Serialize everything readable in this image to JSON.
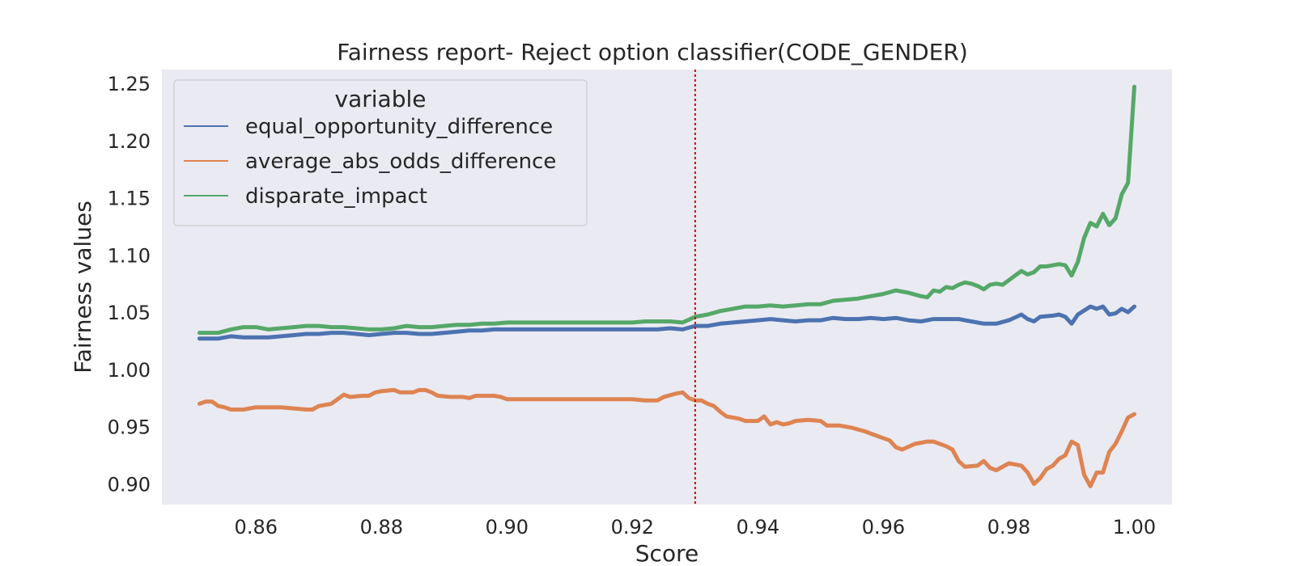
{
  "chart_data": {
    "type": "line",
    "title": "Fairness report- Reject option classifier(CODE_GENDER)",
    "xlabel": "Score",
    "ylabel": "Fairness values",
    "xlim": [
      0.845,
      1.006
    ],
    "ylim": [
      0.882,
      1.262
    ],
    "xticks": [
      0.86,
      0.88,
      0.9,
      0.92,
      0.94,
      0.96,
      0.98,
      1.0
    ],
    "xtick_labels": [
      "0.86",
      "0.88",
      "0.90",
      "0.92",
      "0.94",
      "0.96",
      "0.98",
      "1.00"
    ],
    "yticks": [
      0.9,
      0.95,
      1.0,
      1.05,
      1.1,
      1.15,
      1.2,
      1.25
    ],
    "ytick_labels": [
      "0.90",
      "0.95",
      "1.00",
      "1.05",
      "1.10",
      "1.15",
      "1.20",
      "1.25"
    ],
    "grid": false,
    "background": "#eaeaf2",
    "legend": {
      "title": "variable",
      "placement": "upper-left"
    },
    "vline": {
      "x": 0.93,
      "color": "#dd0000",
      "style": "dotted"
    },
    "series": [
      {
        "name": "equal_opportunity_difference",
        "color": "#4c72b0",
        "points": [
          [
            0.851,
            1.027
          ],
          [
            0.854,
            1.027
          ],
          [
            0.856,
            1.029
          ],
          [
            0.858,
            1.028
          ],
          [
            0.86,
            1.028
          ],
          [
            0.862,
            1.028
          ],
          [
            0.864,
            1.029
          ],
          [
            0.866,
            1.03
          ],
          [
            0.868,
            1.031
          ],
          [
            0.87,
            1.031
          ],
          [
            0.872,
            1.032
          ],
          [
            0.874,
            1.032
          ],
          [
            0.876,
            1.031
          ],
          [
            0.878,
            1.03
          ],
          [
            0.88,
            1.031
          ],
          [
            0.882,
            1.032
          ],
          [
            0.884,
            1.032
          ],
          [
            0.886,
            1.031
          ],
          [
            0.888,
            1.031
          ],
          [
            0.89,
            1.032
          ],
          [
            0.892,
            1.033
          ],
          [
            0.894,
            1.034
          ],
          [
            0.896,
            1.034
          ],
          [
            0.898,
            1.035
          ],
          [
            0.9,
            1.035
          ],
          [
            0.905,
            1.035
          ],
          [
            0.91,
            1.035
          ],
          [
            0.915,
            1.035
          ],
          [
            0.92,
            1.035
          ],
          [
            0.922,
            1.035
          ],
          [
            0.924,
            1.035
          ],
          [
            0.926,
            1.036
          ],
          [
            0.928,
            1.035
          ],
          [
            0.93,
            1.038
          ],
          [
            0.932,
            1.038
          ],
          [
            0.934,
            1.04
          ],
          [
            0.936,
            1.041
          ],
          [
            0.938,
            1.042
          ],
          [
            0.94,
            1.043
          ],
          [
            0.942,
            1.044
          ],
          [
            0.944,
            1.043
          ],
          [
            0.946,
            1.042
          ],
          [
            0.948,
            1.043
          ],
          [
            0.95,
            1.043
          ],
          [
            0.952,
            1.045
          ],
          [
            0.954,
            1.044
          ],
          [
            0.956,
            1.044
          ],
          [
            0.958,
            1.045
          ],
          [
            0.96,
            1.044
          ],
          [
            0.962,
            1.045
          ],
          [
            0.964,
            1.043
          ],
          [
            0.966,
            1.042
          ],
          [
            0.968,
            1.044
          ],
          [
            0.97,
            1.044
          ],
          [
            0.972,
            1.044
          ],
          [
            0.974,
            1.042
          ],
          [
            0.976,
            1.04
          ],
          [
            0.978,
            1.04
          ],
          [
            0.98,
            1.043
          ],
          [
            0.982,
            1.048
          ],
          [
            0.983,
            1.044
          ],
          [
            0.984,
            1.042
          ],
          [
            0.985,
            1.046
          ],
          [
            0.987,
            1.047
          ],
          [
            0.988,
            1.048
          ],
          [
            0.989,
            1.046
          ],
          [
            0.99,
            1.04
          ],
          [
            0.991,
            1.048
          ],
          [
            0.993,
            1.055
          ],
          [
            0.994,
            1.053
          ],
          [
            0.995,
            1.055
          ],
          [
            0.996,
            1.048
          ],
          [
            0.997,
            1.049
          ],
          [
            0.998,
            1.053
          ],
          [
            0.999,
            1.05
          ],
          [
            1.0,
            1.055
          ]
        ]
      },
      {
        "name": "average_abs_odds_difference",
        "color": "#dd8452",
        "points": [
          [
            0.851,
            0.97
          ],
          [
            0.852,
            0.972
          ],
          [
            0.853,
            0.972
          ],
          [
            0.854,
            0.968
          ],
          [
            0.855,
            0.967
          ],
          [
            0.856,
            0.965
          ],
          [
            0.858,
            0.965
          ],
          [
            0.86,
            0.967
          ],
          [
            0.862,
            0.967
          ],
          [
            0.864,
            0.967
          ],
          [
            0.866,
            0.966
          ],
          [
            0.868,
            0.965
          ],
          [
            0.869,
            0.965
          ],
          [
            0.87,
            0.968
          ],
          [
            0.872,
            0.97
          ],
          [
            0.874,
            0.978
          ],
          [
            0.875,
            0.976
          ],
          [
            0.877,
            0.977
          ],
          [
            0.878,
            0.977
          ],
          [
            0.879,
            0.98
          ],
          [
            0.88,
            0.981
          ],
          [
            0.882,
            0.982
          ],
          [
            0.883,
            0.98
          ],
          [
            0.885,
            0.98
          ],
          [
            0.886,
            0.982
          ],
          [
            0.887,
            0.982
          ],
          [
            0.888,
            0.98
          ],
          [
            0.889,
            0.977
          ],
          [
            0.891,
            0.976
          ],
          [
            0.893,
            0.976
          ],
          [
            0.894,
            0.975
          ],
          [
            0.895,
            0.977
          ],
          [
            0.897,
            0.977
          ],
          [
            0.898,
            0.977
          ],
          [
            0.899,
            0.976
          ],
          [
            0.9,
            0.974
          ],
          [
            0.905,
            0.974
          ],
          [
            0.91,
            0.974
          ],
          [
            0.915,
            0.974
          ],
          [
            0.92,
            0.974
          ],
          [
            0.922,
            0.973
          ],
          [
            0.924,
            0.973
          ],
          [
            0.925,
            0.976
          ],
          [
            0.927,
            0.979
          ],
          [
            0.928,
            0.98
          ],
          [
            0.929,
            0.975
          ],
          [
            0.93,
            0.973
          ],
          [
            0.931,
            0.973
          ],
          [
            0.932,
            0.97
          ],
          [
            0.933,
            0.968
          ],
          [
            0.934,
            0.963
          ],
          [
            0.935,
            0.959
          ],
          [
            0.937,
            0.957
          ],
          [
            0.938,
            0.955
          ],
          [
            0.939,
            0.955
          ],
          [
            0.94,
            0.955
          ],
          [
            0.941,
            0.959
          ],
          [
            0.942,
            0.952
          ],
          [
            0.943,
            0.954
          ],
          [
            0.944,
            0.952
          ],
          [
            0.945,
            0.953
          ],
          [
            0.946,
            0.955
          ],
          [
            0.948,
            0.956
          ],
          [
            0.95,
            0.955
          ],
          [
            0.951,
            0.951
          ],
          [
            0.953,
            0.951
          ],
          [
            0.955,
            0.949
          ],
          [
            0.957,
            0.946
          ],
          [
            0.959,
            0.942
          ],
          [
            0.961,
            0.938
          ],
          [
            0.962,
            0.932
          ],
          [
            0.963,
            0.93
          ],
          [
            0.965,
            0.935
          ],
          [
            0.967,
            0.937
          ],
          [
            0.968,
            0.937
          ],
          [
            0.97,
            0.933
          ],
          [
            0.971,
            0.93
          ],
          [
            0.972,
            0.92
          ],
          [
            0.973,
            0.915
          ],
          [
            0.975,
            0.916
          ],
          [
            0.976,
            0.92
          ],
          [
            0.977,
            0.914
          ],
          [
            0.978,
            0.912
          ],
          [
            0.98,
            0.918
          ],
          [
            0.981,
            0.917
          ],
          [
            0.982,
            0.916
          ],
          [
            0.983,
            0.91
          ],
          [
            0.984,
            0.9
          ],
          [
            0.985,
            0.905
          ],
          [
            0.986,
            0.913
          ],
          [
            0.987,
            0.916
          ],
          [
            0.988,
            0.922
          ],
          [
            0.989,
            0.925
          ],
          [
            0.99,
            0.937
          ],
          [
            0.991,
            0.934
          ],
          [
            0.992,
            0.908
          ],
          [
            0.993,
            0.898
          ],
          [
            0.994,
            0.91
          ],
          [
            0.995,
            0.91
          ],
          [
            0.996,
            0.928
          ],
          [
            0.997,
            0.935
          ],
          [
            0.998,
            0.946
          ],
          [
            0.999,
            0.958
          ],
          [
            1.0,
            0.961
          ]
        ]
      },
      {
        "name": "disparate_impact",
        "color": "#55a868",
        "points": [
          [
            0.851,
            1.032
          ],
          [
            0.854,
            1.032
          ],
          [
            0.856,
            1.035
          ],
          [
            0.858,
            1.037
          ],
          [
            0.86,
            1.037
          ],
          [
            0.862,
            1.035
          ],
          [
            0.864,
            1.036
          ],
          [
            0.866,
            1.037
          ],
          [
            0.868,
            1.038
          ],
          [
            0.87,
            1.038
          ],
          [
            0.872,
            1.037
          ],
          [
            0.874,
            1.037
          ],
          [
            0.876,
            1.036
          ],
          [
            0.878,
            1.035
          ],
          [
            0.88,
            1.035
          ],
          [
            0.882,
            1.036
          ],
          [
            0.884,
            1.038
          ],
          [
            0.886,
            1.037
          ],
          [
            0.888,
            1.037
          ],
          [
            0.89,
            1.038
          ],
          [
            0.892,
            1.039
          ],
          [
            0.894,
            1.039
          ],
          [
            0.896,
            1.04
          ],
          [
            0.898,
            1.04
          ],
          [
            0.9,
            1.041
          ],
          [
            0.905,
            1.041
          ],
          [
            0.91,
            1.041
          ],
          [
            0.915,
            1.041
          ],
          [
            0.92,
            1.041
          ],
          [
            0.922,
            1.042
          ],
          [
            0.924,
            1.042
          ],
          [
            0.926,
            1.042
          ],
          [
            0.928,
            1.041
          ],
          [
            0.93,
            1.046
          ],
          [
            0.932,
            1.048
          ],
          [
            0.934,
            1.051
          ],
          [
            0.936,
            1.053
          ],
          [
            0.938,
            1.055
          ],
          [
            0.94,
            1.055
          ],
          [
            0.942,
            1.056
          ],
          [
            0.944,
            1.055
          ],
          [
            0.946,
            1.056
          ],
          [
            0.948,
            1.057
          ],
          [
            0.95,
            1.057
          ],
          [
            0.952,
            1.06
          ],
          [
            0.954,
            1.061
          ],
          [
            0.956,
            1.062
          ],
          [
            0.958,
            1.064
          ],
          [
            0.96,
            1.066
          ],
          [
            0.962,
            1.069
          ],
          [
            0.964,
            1.067
          ],
          [
            0.966,
            1.064
          ],
          [
            0.967,
            1.063
          ],
          [
            0.968,
            1.069
          ],
          [
            0.969,
            1.068
          ],
          [
            0.97,
            1.072
          ],
          [
            0.971,
            1.071
          ],
          [
            0.972,
            1.074
          ],
          [
            0.973,
            1.076
          ],
          [
            0.974,
            1.075
          ],
          [
            0.975,
            1.073
          ],
          [
            0.976,
            1.07
          ],
          [
            0.977,
            1.074
          ],
          [
            0.978,
            1.075
          ],
          [
            0.979,
            1.074
          ],
          [
            0.98,
            1.078
          ],
          [
            0.981,
            1.082
          ],
          [
            0.982,
            1.086
          ],
          [
            0.983,
            1.083
          ],
          [
            0.984,
            1.085
          ],
          [
            0.985,
            1.09
          ],
          [
            0.986,
            1.09
          ],
          [
            0.987,
            1.091
          ],
          [
            0.988,
            1.092
          ],
          [
            0.989,
            1.091
          ],
          [
            0.99,
            1.082
          ],
          [
            0.991,
            1.094
          ],
          [
            0.992,
            1.115
          ],
          [
            0.993,
            1.128
          ],
          [
            0.994,
            1.125
          ],
          [
            0.995,
            1.136
          ],
          [
            0.996,
            1.126
          ],
          [
            0.997,
            1.132
          ],
          [
            0.998,
            1.153
          ],
          [
            0.999,
            1.163
          ],
          [
            1.0,
            1.247
          ]
        ]
      }
    ]
  }
}
